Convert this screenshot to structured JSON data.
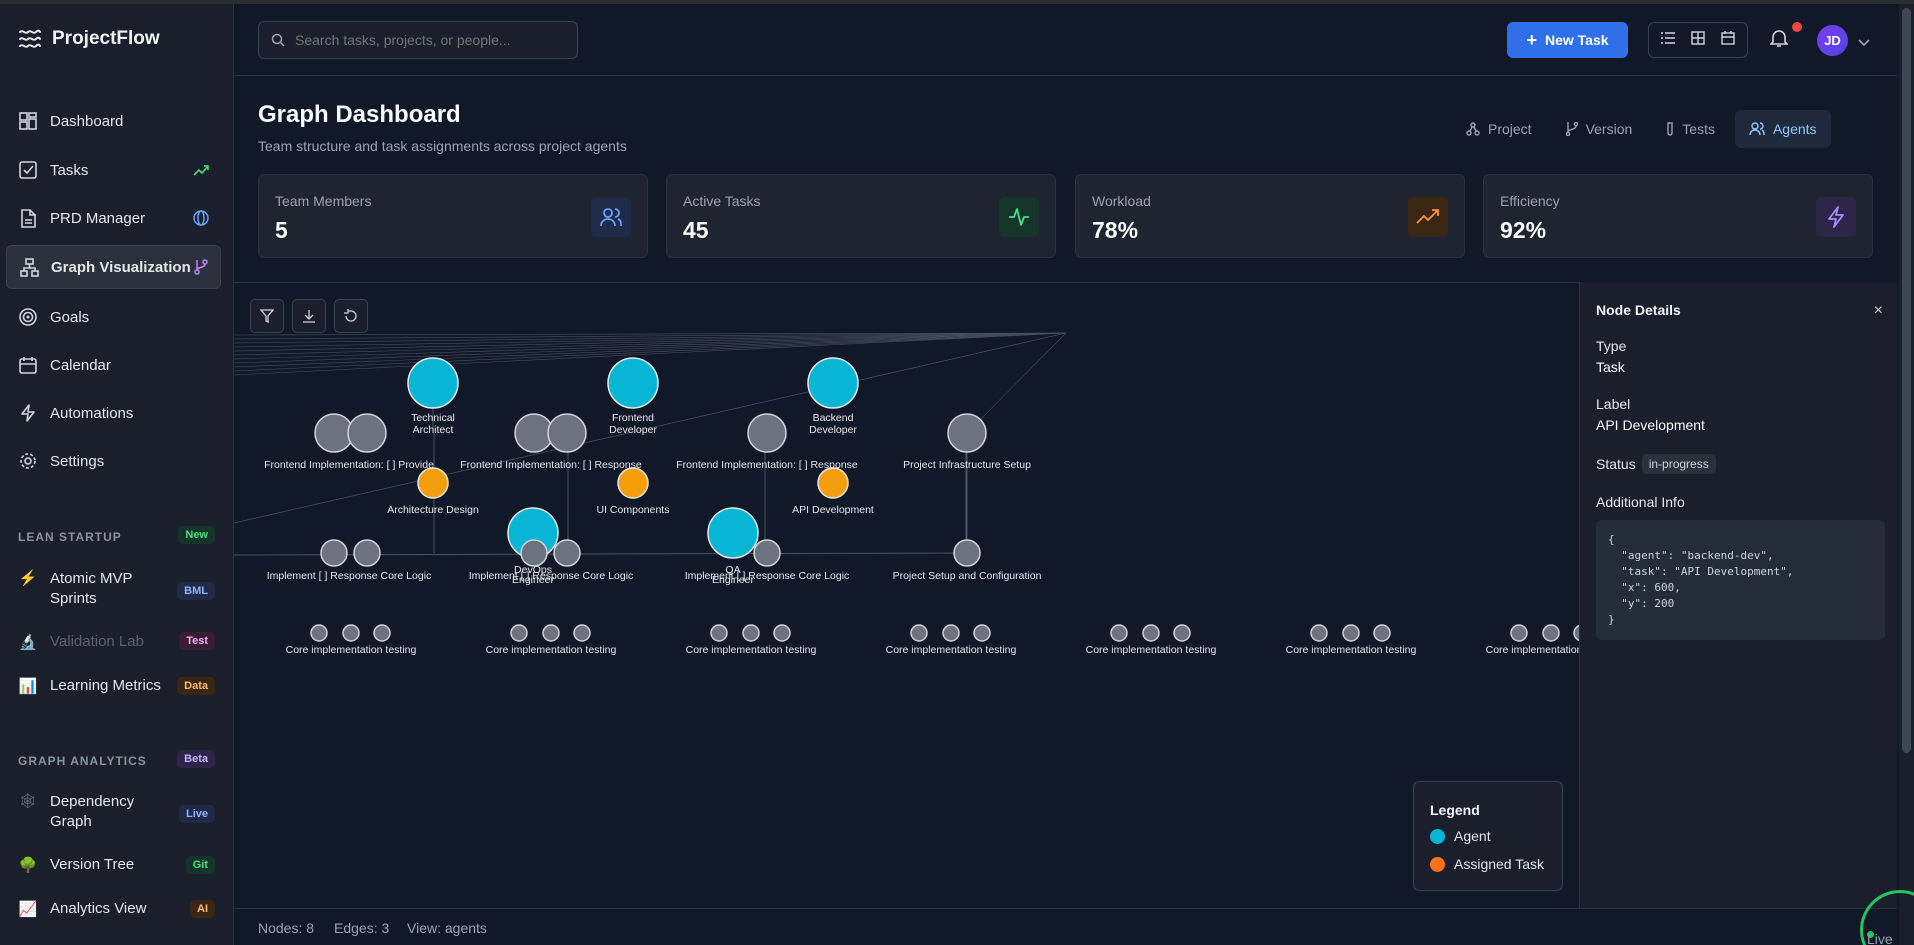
{
  "app": {
    "name": "ProjectFlow"
  },
  "search": {
    "placeholder": "Search tasks, projects, or people..."
  },
  "header": {
    "new_task_label": "New Task",
    "avatar_initials": "JD"
  },
  "nav": {
    "items": [
      {
        "label": "Dashboard",
        "icon": "dashboard-icon"
      },
      {
        "label": "Tasks",
        "icon": "check-square-icon",
        "trail_icon": "trend-up-icon"
      },
      {
        "label": "PRD Manager",
        "icon": "document-icon",
        "trail_icon": "globe-icon"
      },
      {
        "label": "Graph Visualization",
        "icon": "graph-icon",
        "trail_icon": "branch-icon"
      },
      {
        "label": "Goals",
        "icon": "target-icon"
      },
      {
        "label": "Calendar",
        "icon": "calendar-icon"
      },
      {
        "label": "Automations",
        "icon": "bolt-icon"
      },
      {
        "label": "Settings",
        "icon": "gear-icon"
      }
    ]
  },
  "lean": {
    "title": "LEAN STARTUP",
    "badge": "New",
    "items": [
      {
        "label": "Atomic MVP Sprints",
        "badge": "BML",
        "icon": "⚡"
      },
      {
        "label": "Validation Lab",
        "badge": "Test",
        "icon": "🔬"
      },
      {
        "label": "Learning Metrics",
        "badge": "Data",
        "icon": "📊"
      }
    ]
  },
  "analytics": {
    "title": "GRAPH ANALYTICS",
    "badge": "Beta",
    "items": [
      {
        "label": "Dependency Graph",
        "badge": "Live",
        "icon": "🕸"
      },
      {
        "label": "Version Tree",
        "badge": "Git",
        "icon": "🌳"
      },
      {
        "label": "Analytics View",
        "badge": "AI",
        "icon": "📈"
      }
    ]
  },
  "page": {
    "title": "Graph Dashboard",
    "subtitle": "Team structure and task assignments across project agents",
    "tabs": [
      "Project",
      "Version",
      "Tests",
      "Agents"
    ],
    "active_tab": "Agents"
  },
  "stats": [
    {
      "label": "Team Members",
      "value": "5",
      "icon": "users-icon",
      "color": "#60a5fa",
      "bg": "#1e2a47"
    },
    {
      "label": "Active Tasks",
      "value": "45",
      "icon": "activity-icon",
      "color": "#4ade80",
      "bg": "#16352a"
    },
    {
      "label": "Workload",
      "value": "78%",
      "icon": "trend-up-icon",
      "color": "#fb923c",
      "bg": "#3b2614"
    },
    {
      "label": "Efficiency",
      "value": "92%",
      "icon": "bolt-icon",
      "color": "#a78bfa",
      "bg": "#2d2547"
    }
  ],
  "graph": {
    "agents": [
      "Technical Architect",
      "Frontend Developer",
      "Backend Developer",
      "DevOps Engineer",
      "QA Engineer"
    ],
    "assigned_tasks": [
      "Architecture Design",
      "UI Components",
      "API Development"
    ],
    "node_labels_row1": [
      "Frontend Implementation: [ ] Provide",
      "Frontend Implementation: [ ] Response",
      "Project Infrastructure Setup"
    ],
    "node_labels_row2": [
      "Implement [ ] Response Core Logic",
      "Project Setup and Configuration"
    ],
    "row3_label": "Core implementation testing"
  },
  "legend": {
    "title": "Legend",
    "agent": "Agent",
    "assigned": "Assigned Task",
    "agent_color": "#06b6d4",
    "task_color": "#f59e0b"
  },
  "details": {
    "title": "Node Details",
    "type_label": "Type",
    "type_value": "Task",
    "label_label": "Label",
    "label_value": "API Development",
    "status_label": "Status",
    "status_value": "in-progress",
    "info_label": "Additional Info",
    "info_json": "{\n  \"agent\": \"backend-dev\",\n  \"task\": \"API Development\",\n  \"x\": 600,\n  \"y\": 200\n}"
  },
  "footer": {
    "nodes": "Nodes: 8",
    "edges": "Edges: 3",
    "view": "View: agents",
    "live": "Live"
  }
}
